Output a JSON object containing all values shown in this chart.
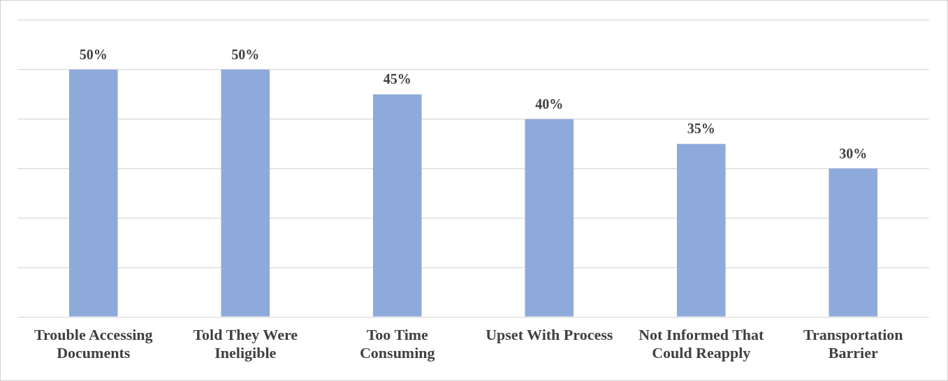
{
  "chart_data": {
    "type": "bar",
    "categories": [
      "Trouble Accessing Documents",
      "Told They Were Ineligible",
      "Too Time Consuming",
      "Upset With Process",
      "Not Informed That Could Reapply",
      "Transportation Barrier"
    ],
    "values": [
      50,
      50,
      45,
      40,
      35,
      30
    ],
    "value_labels": [
      "50%",
      "50%",
      "45%",
      "40%",
      "35%",
      "30%"
    ],
    "color": "#8eaadb",
    "ylim": [
      0,
      60
    ],
    "yticks": [
      {
        "value": 0,
        "label": null
      },
      {
        "value": 10,
        "label": null
      },
      {
        "value": 20,
        "label": null
      },
      {
        "value": 30,
        "label": null
      },
      {
        "value": 40,
        "label": null
      },
      {
        "value": 50,
        "label": null
      },
      {
        "value": 60,
        "label": null
      }
    ],
    "tick_labels": "x",
    "grid": "y"
  }
}
